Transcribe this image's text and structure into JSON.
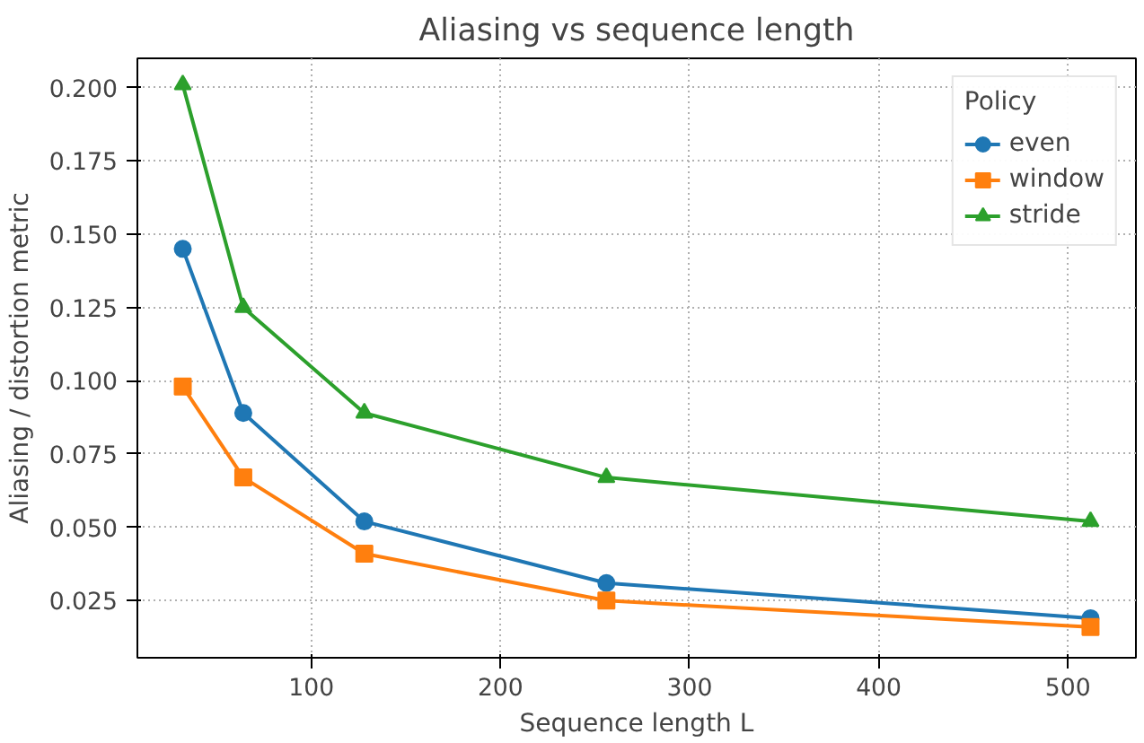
{
  "chart_data": {
    "type": "line",
    "title": "Aliasing vs sequence length",
    "xlabel": "Sequence length L",
    "ylabel": "Aliasing / distortion metric",
    "legend_title": "Policy",
    "x": [
      32,
      64,
      128,
      256,
      512
    ],
    "series": [
      {
        "name": "even",
        "color": "#1f77b4",
        "marker": "circle",
        "values": [
          0.145,
          0.089,
          0.052,
          0.031,
          0.019
        ]
      },
      {
        "name": "window",
        "color": "#ff7f0e",
        "marker": "square",
        "values": [
          0.098,
          0.067,
          0.041,
          0.025,
          0.016
        ]
      },
      {
        "name": "stride",
        "color": "#2ca02c",
        "marker": "triangle",
        "values": [
          0.201,
          0.125,
          0.089,
          0.067,
          0.052
        ]
      }
    ],
    "xlim": [
      8,
      536
    ],
    "xticks": [
      100,
      200,
      300,
      400,
      500
    ],
    "ylim": [
      0.0055,
      0.21
    ],
    "yticks": [
      0.025,
      {
        "value": 0.05,
        "label": "0.050"
      },
      0.075,
      {
        "value": 0.1,
        "label": "0.100"
      },
      0.125,
      {
        "value": 0.15,
        "label": "0.150"
      },
      0.175,
      {
        "value": 0.2,
        "label": "0.200"
      }
    ],
    "grid": true,
    "legend": "top right",
    "line_style": "solid"
  }
}
